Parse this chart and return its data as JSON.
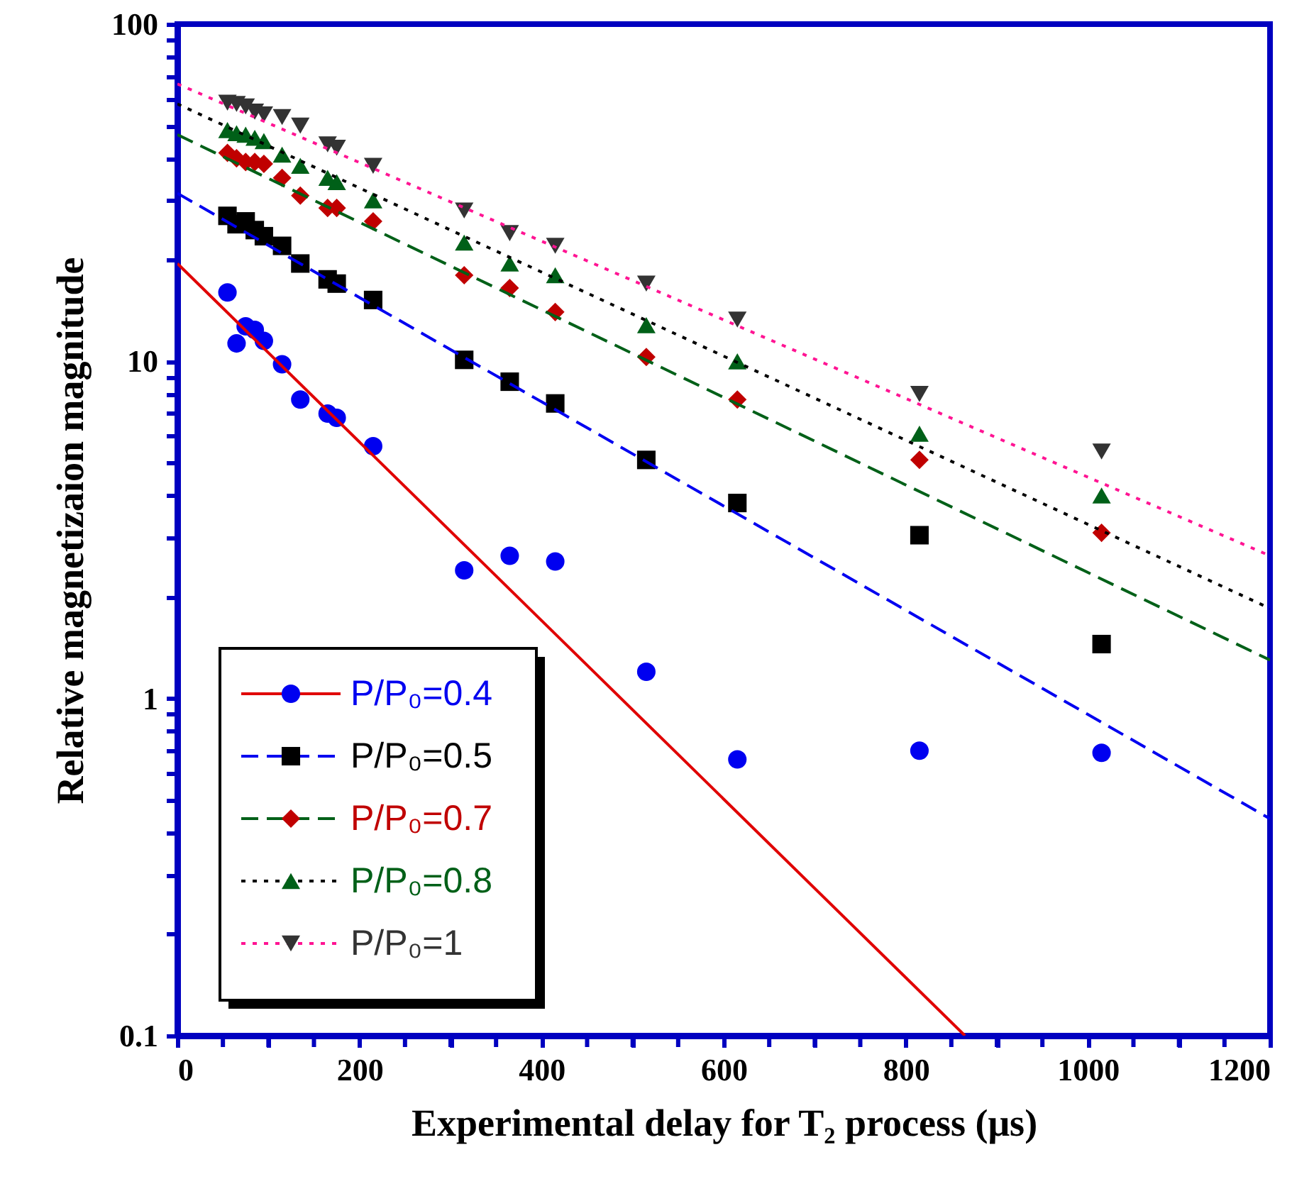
{
  "chart_data": {
    "type": "scatter",
    "xlabel": "Experimental delay for T₂ process (μs)",
    "ylabel": "Relative magnetizaion magnitude",
    "x": [
      55,
      65,
      75,
      85,
      95,
      115,
      135,
      165,
      175,
      215,
      315,
      365,
      415,
      515,
      615,
      815,
      1015
    ],
    "series": [
      {
        "name": "P/P₀=0.4",
        "color": "#0000f0",
        "marker": "circle",
        "values": [
          16,
          11.3,
          12.7,
          12.4,
          11.5,
          9.8,
          7.7,
          7.0,
          6.8,
          5.6,
          2.4,
          2.65,
          2.55,
          1.2,
          0.66,
          0.7,
          0.69
        ]
      },
      {
        "name": "P/P₀=0.5",
        "color": "#000000",
        "marker": "square",
        "values": [
          27,
          25.5,
          26,
          24.5,
          23.5,
          22,
          19.5,
          17.5,
          17,
          15.2,
          10.1,
          8.7,
          7.5,
          5.1,
          3.8,
          3.05,
          1.45
        ]
      },
      {
        "name": "P/P₀=0.7",
        "color": "#c00000",
        "marker": "diamond",
        "values": [
          41.5,
          40,
          39,
          39,
          38.5,
          35,
          31,
          28.5,
          28.5,
          26,
          18,
          16.5,
          14,
          10.3,
          7.7,
          5.1,
          3.1
        ]
      },
      {
        "name": "P/P₀=0.8",
        "color": "#006018",
        "marker": "triangle",
        "values": [
          48.5,
          47.5,
          47,
          46,
          45,
          41,
          38,
          35,
          34,
          30,
          22.5,
          19.5,
          18,
          12.8,
          10,
          6.1,
          4.0
        ]
      },
      {
        "name": "P/P₀=1",
        "color": "#333333",
        "marker": "triangle-down",
        "values": [
          58.5,
          58,
          57,
          55,
          54,
          53,
          50,
          44,
          43,
          38,
          28,
          24,
          22,
          17,
          13.3,
          8.0,
          5.4
        ]
      },
      {
        "type": "line",
        "color": "#e00000",
        "line_style": "solid",
        "x": [
          0,
          865
        ],
        "values": [
          19.5,
          0.1
        ]
      },
      {
        "type": "line",
        "color": "#0000f0",
        "line_style": "dashed",
        "x": [
          0,
          1200
        ],
        "values": [
          31.5,
          0.44
        ]
      },
      {
        "type": "line",
        "color": "#006018",
        "line_style": "dashed",
        "x": [
          0,
          1200
        ],
        "values": [
          47,
          1.3
        ]
      },
      {
        "type": "line",
        "color": "#000000",
        "line_style": "dotted",
        "x": [
          0,
          1200
        ],
        "values": [
          58,
          1.85
        ]
      },
      {
        "type": "line",
        "color": "#ff1493",
        "line_style": "dotted",
        "x": [
          0,
          1200
        ],
        "values": [
          66.5,
          2.65
        ]
      }
    ],
    "log": "y",
    "xlim": [
      0,
      1200
    ],
    "xticks": [
      0,
      {
        "value": 50,
        "label": null
      },
      {
        "value": 100,
        "label": null
      },
      {
        "value": 150,
        "label": null
      },
      200,
      {
        "value": 250,
        "label": null
      },
      {
        "value": 300,
        "label": null
      },
      {
        "value": 350,
        "label": null
      },
      400,
      {
        "value": 450,
        "label": null
      },
      {
        "value": 500,
        "label": null
      },
      {
        "value": 550,
        "label": null
      },
      600,
      {
        "value": 650,
        "label": null
      },
      {
        "value": 700,
        "label": null
      },
      {
        "value": 750,
        "label": null
      },
      800,
      {
        "value": 850,
        "label": null
      },
      {
        "value": 900,
        "label": null
      },
      {
        "value": 950,
        "label": null
      },
      1000,
      {
        "value": 1050,
        "label": null
      },
      {
        "value": 1100,
        "label": null
      },
      {
        "value": 1150,
        "label": null
      },
      1200
    ],
    "ylim": [
      0.1,
      100
    ],
    "yticks": [
      0.1,
      {
        "value": 0.2,
        "label": null
      },
      {
        "value": 0.3,
        "label": null
      },
      {
        "value": 0.4,
        "label": null
      },
      {
        "value": 0.5,
        "label": null
      },
      {
        "value": 0.6,
        "label": null
      },
      {
        "value": 0.7,
        "label": null
      },
      {
        "value": 0.8,
        "label": null
      },
      {
        "value": 0.9,
        "label": null
      },
      1,
      {
        "value": 2,
        "label": null
      },
      {
        "value": 3,
        "label": null
      },
      {
        "value": 4,
        "label": null
      },
      {
        "value": 5,
        "label": null
      },
      {
        "value": 6,
        "label": null
      },
      {
        "value": 7,
        "label": null
      },
      {
        "value": 8,
        "label": null
      },
      {
        "value": 9,
        "label": null
      },
      10,
      {
        "value": 20,
        "label": null
      },
      {
        "value": 30,
        "label": null
      },
      {
        "value": 40,
        "label": null
      },
      {
        "value": 50,
        "label": null
      },
      {
        "value": 60,
        "label": null
      },
      {
        "value": 70,
        "label": null
      },
      {
        "value": 80,
        "label": null
      },
      {
        "value": 90,
        "label": null
      },
      100
    ],
    "grid": false,
    "legend": "bottom left"
  }
}
